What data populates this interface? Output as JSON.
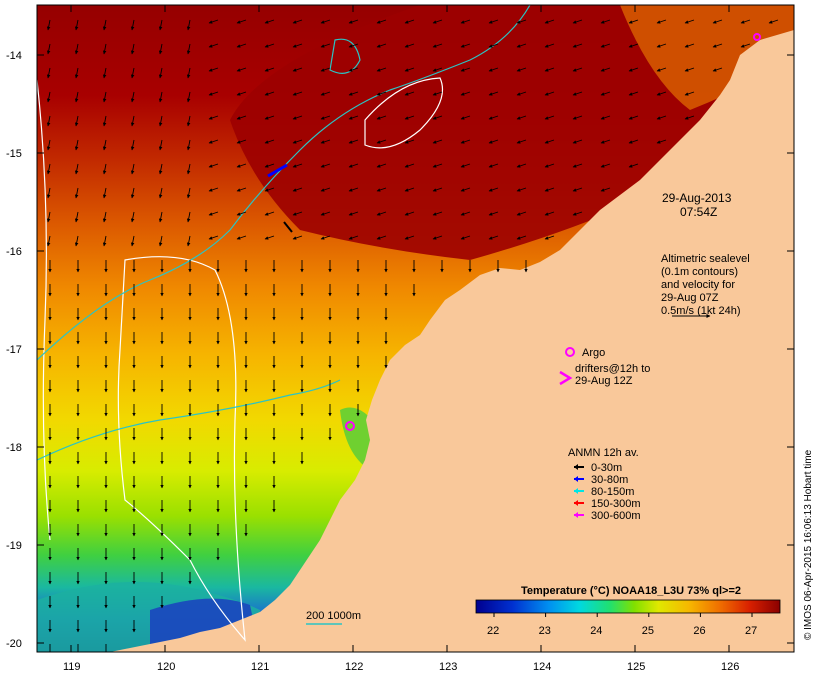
{
  "map": {
    "date": "29-Aug-2013",
    "time": "07:54Z",
    "altimetry_lines": [
      "Altimetric sealevel",
      "(0.1m contours)",
      "and velocity for",
      "29-Aug 07Z",
      "0.5m/s (1kt 24h)"
    ],
    "argo_label": "Argo",
    "drifters_lines": [
      "drifters@12h to",
      "29-Aug 12Z"
    ],
    "anmn": {
      "title": "ANMN 12h av.",
      "items": [
        {
          "label": "0-30m",
          "color": "#000000"
        },
        {
          "label": "30-80m",
          "color": "#0000ff"
        },
        {
          "label": "80-150m",
          "color": "#00e5e5"
        },
        {
          "label": "150-300m",
          "color": "#ff0000"
        },
        {
          "label": "300-600m",
          "color": "#ff00ff"
        }
      ]
    },
    "bathymetry_label": "200  1000m",
    "colorbar": {
      "title": "Temperature (°C) NOAA18_L3U 73% ql>=2",
      "ticks": [
        "22",
        "23",
        "24",
        "25",
        "26",
        "27"
      ]
    },
    "credit": "© IMOS 06-Apr-2015 16:06:13 Hobart time",
    "lon_ticks": [
      "119",
      "120",
      "121",
      "122",
      "123",
      "124",
      "125",
      "126"
    ],
    "lat_ticks": [
      "-14",
      "-15",
      "-16",
      "-17",
      "-18",
      "-19",
      "-20"
    ],
    "colors": {
      "land": "#f9c89a",
      "contour": "#ffffff",
      "bathy": "#2bc4c4",
      "argo": "#ff00ff"
    }
  }
}
